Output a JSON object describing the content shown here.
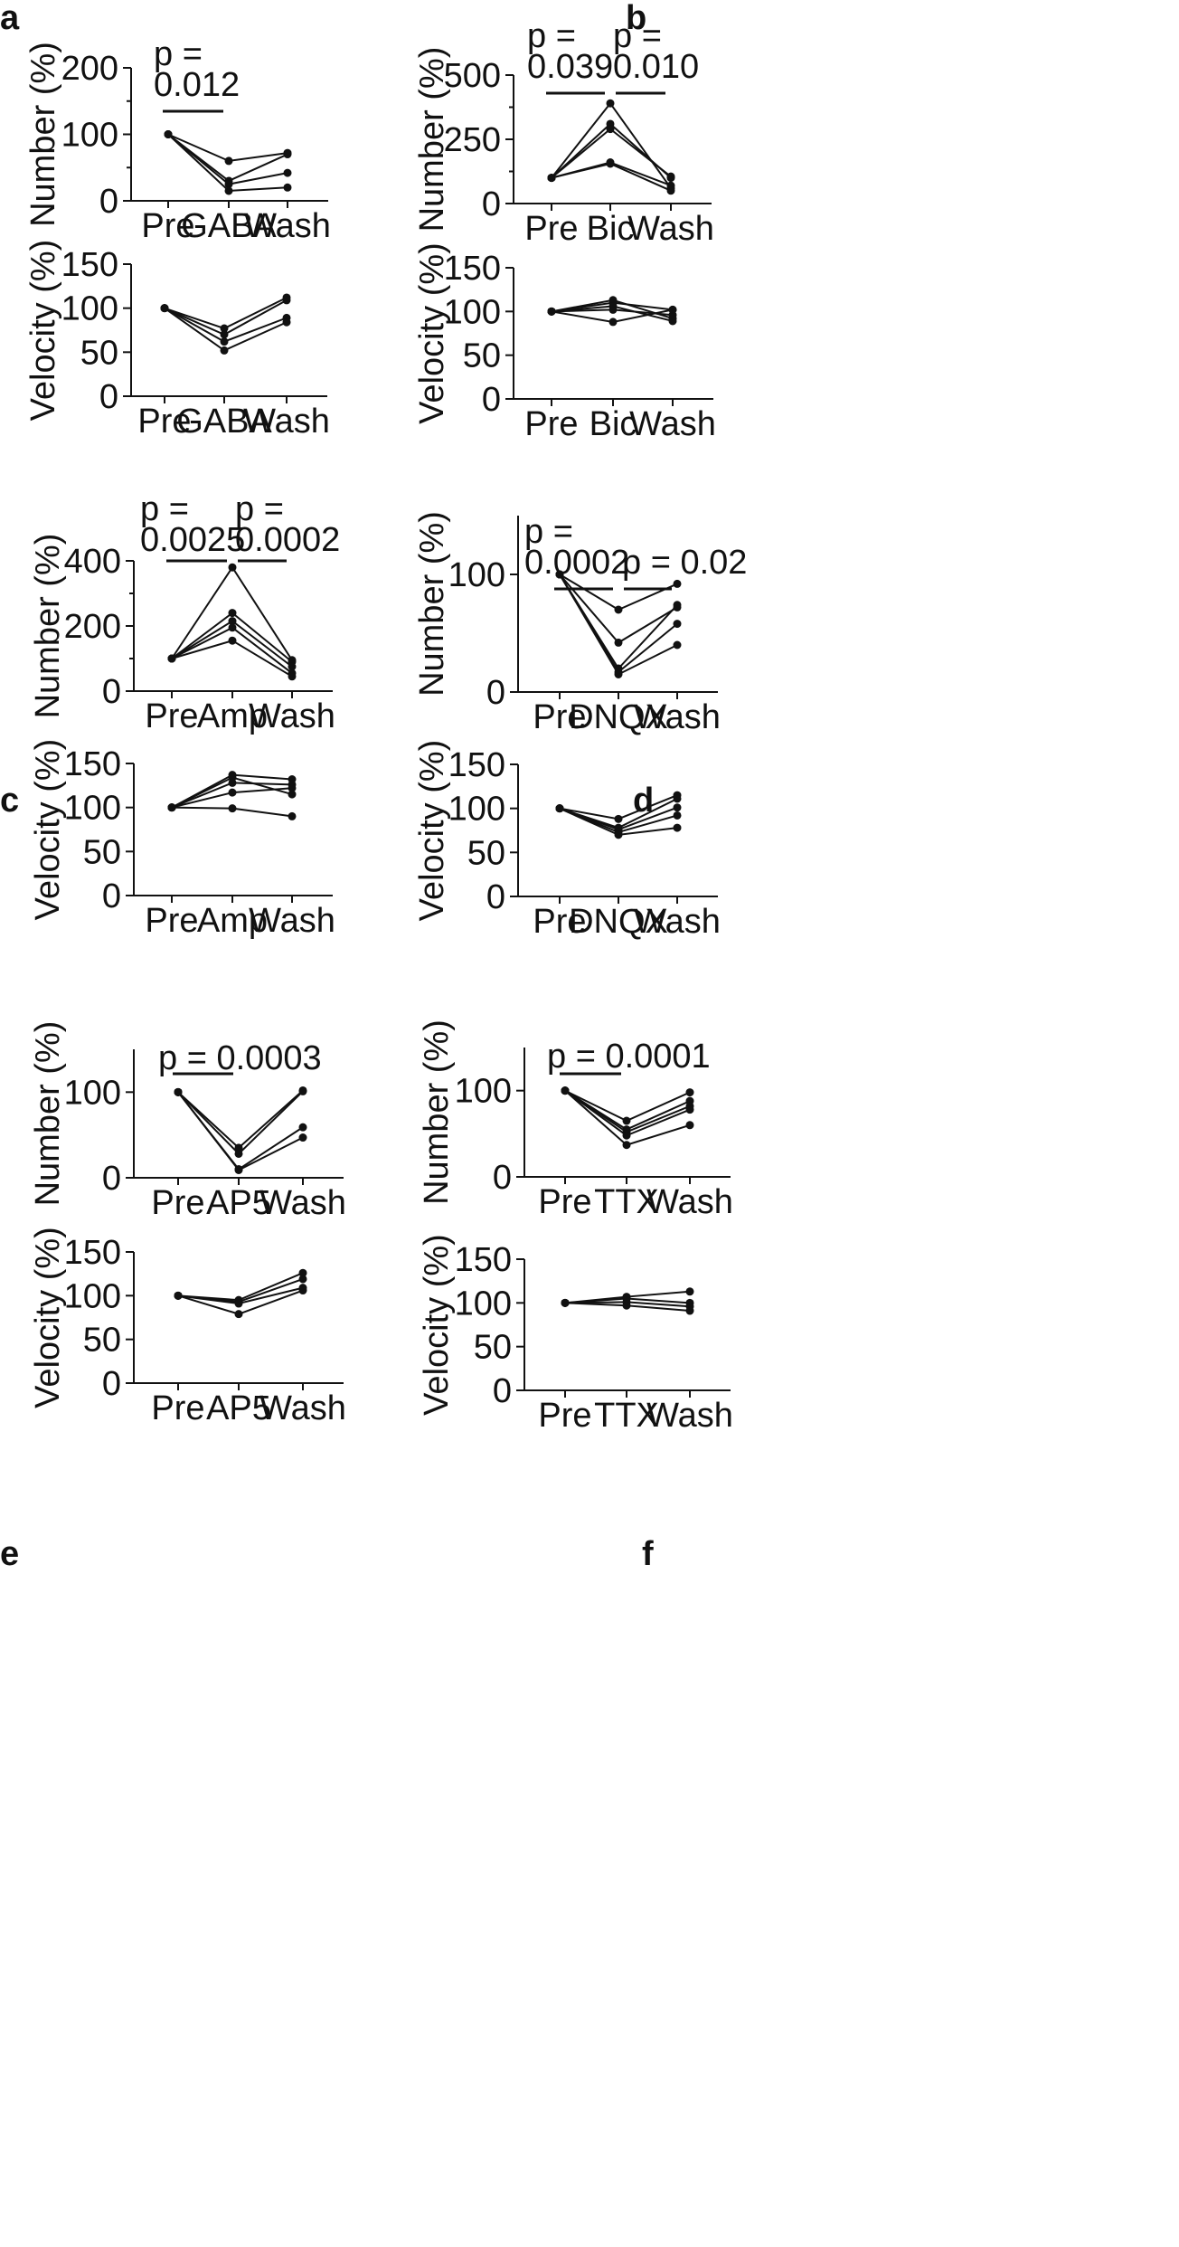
{
  "chart_data": [
    {
      "panel": "a",
      "type": "line",
      "categories": [
        "Pre",
        "GABA",
        "Wash"
      ],
      "ylabel": "Number (%)",
      "ylim": [
        0,
        200
      ],
      "yticks": [
        0,
        100,
        200
      ],
      "series": [
        {
          "values": [
            100,
            60,
            72
          ]
        },
        {
          "values": [
            100,
            30,
            70
          ]
        },
        {
          "values": [
            100,
            25,
            42
          ]
        },
        {
          "values": [
            100,
            15,
            20
          ]
        }
      ],
      "annotations": [
        {
          "from": "Pre",
          "to": "GABA",
          "label": "p =",
          "label2": "0.012"
        }
      ]
    },
    {
      "panel": "a",
      "type": "line",
      "categories": [
        "Pre",
        "GABA",
        "Wash"
      ],
      "ylabel": "Velocity (%)",
      "ylim": [
        0,
        150
      ],
      "yticks": [
        0,
        50,
        100,
        150
      ],
      "series": [
        {
          "values": [
            100,
            77,
            112
          ]
        },
        {
          "values": [
            100,
            70,
            109
          ]
        },
        {
          "values": [
            100,
            62,
            89
          ]
        },
        {
          "values": [
            100,
            52,
            84
          ]
        }
      ],
      "annotations": []
    },
    {
      "panel": "b",
      "type": "line",
      "categories": [
        "Pre",
        "Bic",
        "Wash"
      ],
      "ylabel": "Number (%)",
      "ylim": [
        0,
        500
      ],
      "yticks": [
        0,
        250,
        500
      ],
      "series": [
        {
          "values": [
            100,
            390,
            60
          ]
        },
        {
          "values": [
            100,
            310,
            100
          ]
        },
        {
          "values": [
            100,
            290,
            105
          ]
        },
        {
          "values": [
            100,
            160,
            70
          ]
        },
        {
          "values": [
            100,
            155,
            50
          ]
        }
      ],
      "annotations": [
        {
          "from": "Pre",
          "to": "Bic",
          "label": "p =",
          "label2": "0.039"
        },
        {
          "from": "Bic",
          "to": "Wash",
          "label": "p =",
          "label2": "0.010"
        }
      ]
    },
    {
      "panel": "b",
      "type": "line",
      "categories": [
        "Pre",
        "Bic",
        "Wash"
      ],
      "ylabel": "Velocity (%)",
      "ylim": [
        0,
        150
      ],
      "yticks": [
        0,
        50,
        100,
        150
      ],
      "series": [
        {
          "values": [
            100,
            113,
            92
          ]
        },
        {
          "values": [
            100,
            110,
            102
          ]
        },
        {
          "values": [
            100,
            106,
            89
          ]
        },
        {
          "values": [
            100,
            102,
            96
          ]
        },
        {
          "values": [
            100,
            88,
            102
          ]
        }
      ],
      "annotations": []
    },
    {
      "panel": "c",
      "type": "line",
      "categories": [
        "Pre",
        "Amp",
        "Wash"
      ],
      "ylabel": "Number (%)",
      "ylim": [
        0,
        400
      ],
      "yticks": [
        0,
        200,
        400
      ],
      "series": [
        {
          "values": [
            100,
            380,
            95
          ]
        },
        {
          "values": [
            100,
            240,
            90
          ]
        },
        {
          "values": [
            100,
            215,
            75
          ]
        },
        {
          "values": [
            100,
            195,
            55
          ]
        },
        {
          "values": [
            100,
            155,
            45
          ]
        }
      ],
      "annotations": [
        {
          "from": "Pre",
          "to": "Amp",
          "label": "p =",
          "label2": "0.0025"
        },
        {
          "from": "Amp",
          "to": "Wash",
          "label": "p =",
          "label2": "0.0002"
        }
      ]
    },
    {
      "panel": "c",
      "type": "line",
      "categories": [
        "Pre",
        "Amp",
        "Wash"
      ],
      "ylabel": "Velocity (%)",
      "ylim": [
        0,
        150
      ],
      "yticks": [
        0,
        50,
        100,
        150
      ],
      "series": [
        {
          "values": [
            100,
            137,
            132
          ]
        },
        {
          "values": [
            100,
            134,
            115
          ]
        },
        {
          "values": [
            100,
            128,
            126
          ]
        },
        {
          "values": [
            100,
            117,
            122
          ]
        },
        {
          "values": [
            100,
            99,
            90
          ]
        }
      ],
      "annotations": []
    },
    {
      "panel": "d",
      "type": "line",
      "categories": [
        "Pre",
        "DNQX",
        "Wash"
      ],
      "ylabel": "Number (%)",
      "ylim": [
        0,
        150
      ],
      "yticks": [
        0,
        100
      ],
      "series": [
        {
          "values": [
            100,
            70,
            92
          ]
        },
        {
          "values": [
            100,
            42,
            72
          ]
        },
        {
          "values": [
            100,
            20,
            74
          ]
        },
        {
          "values": [
            100,
            17,
            58
          ]
        },
        {
          "values": [
            100,
            15,
            40
          ]
        }
      ],
      "annotations": [
        {
          "from": "Pre",
          "to": "DNQX",
          "label": "p =",
          "label2": "0.0002"
        },
        {
          "from": "DNQX",
          "to": "Wash",
          "label": "p = 0.02",
          "label2": ""
        }
      ]
    },
    {
      "panel": "d",
      "type": "line",
      "categories": [
        "Pre",
        "DNQX",
        "Wash"
      ],
      "ylabel": "Velocity (%)",
      "ylim": [
        0,
        150
      ],
      "yticks": [
        0,
        50,
        100,
        150
      ],
      "series": [
        {
          "values": [
            100,
            88,
            115
          ]
        },
        {
          "values": [
            100,
            78,
            111
          ]
        },
        {
          "values": [
            100,
            76,
            101
          ]
        },
        {
          "values": [
            100,
            73,
            92
          ]
        },
        {
          "values": [
            100,
            70,
            78
          ]
        }
      ],
      "annotations": []
    },
    {
      "panel": "e",
      "type": "line",
      "categories": [
        "Pre",
        "AP5",
        "Wash"
      ],
      "ylabel": "Number (%)",
      "ylim": [
        0,
        150
      ],
      "yticks": [
        0,
        100
      ],
      "series": [
        {
          "values": [
            100,
            35,
            102
          ]
        },
        {
          "values": [
            100,
            28,
            101
          ]
        },
        {
          "values": [
            100,
            10,
            59
          ]
        },
        {
          "values": [
            100,
            9,
            47
          ]
        }
      ],
      "annotations": [
        {
          "from": "Pre",
          "to": "AP5",
          "label": "p = 0.0003",
          "label2": ""
        }
      ]
    },
    {
      "panel": "e",
      "type": "line",
      "categories": [
        "Pre",
        "AP5",
        "Wash"
      ],
      "ylabel": "Velocity (%)",
      "ylim": [
        0,
        150
      ],
      "yticks": [
        0,
        50,
        100,
        150
      ],
      "series": [
        {
          "values": [
            100,
            95,
            126
          ]
        },
        {
          "values": [
            100,
            93,
            119
          ]
        },
        {
          "values": [
            100,
            91,
            109
          ]
        },
        {
          "values": [
            100,
            79,
            106
          ]
        }
      ],
      "annotations": []
    },
    {
      "panel": "f",
      "type": "line",
      "categories": [
        "Pre",
        "TTX",
        "Wash"
      ],
      "ylabel": "Number (%)",
      "ylim": [
        0,
        150
      ],
      "yticks": [
        0,
        100
      ],
      "series": [
        {
          "values": [
            100,
            65,
            98
          ]
        },
        {
          "values": [
            100,
            55,
            88
          ]
        },
        {
          "values": [
            100,
            52,
            82
          ]
        },
        {
          "values": [
            100,
            48,
            78
          ]
        },
        {
          "values": [
            100,
            37,
            60
          ]
        }
      ],
      "annotations": [
        {
          "from": "Pre",
          "to": "TTX",
          "label": "p = 0.0001",
          "label2": ""
        }
      ]
    },
    {
      "panel": "f",
      "type": "line",
      "categories": [
        "Pre",
        "TTX",
        "Wash"
      ],
      "ylabel": "Velocity (%)",
      "ylim": [
        0,
        150
      ],
      "yticks": [
        0,
        50,
        100,
        150
      ],
      "series": [
        {
          "values": [
            100,
            107,
            113
          ]
        },
        {
          "values": [
            100,
            105,
            100
          ]
        },
        {
          "values": [
            100,
            101,
            96
          ]
        },
        {
          "values": [
            100,
            97,
            91
          ]
        }
      ],
      "annotations": []
    }
  ]
}
